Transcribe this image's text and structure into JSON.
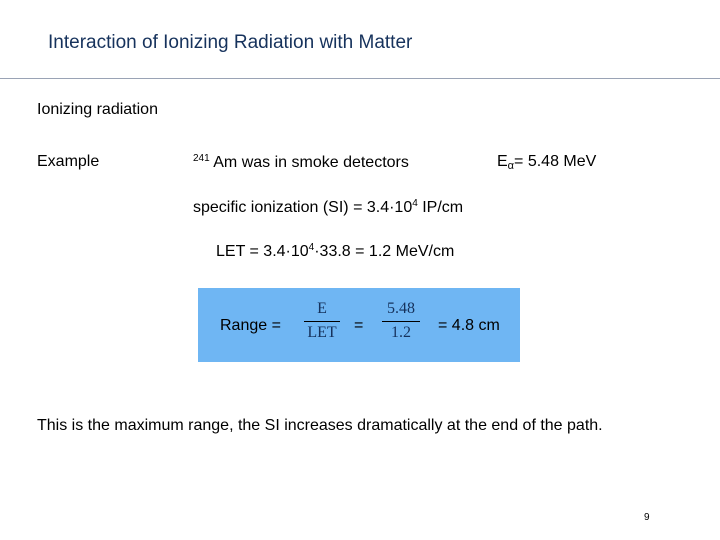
{
  "slide": {
    "title": "Interaction of Ionizing Radiation with Matter",
    "heading": "Ionizing radiation",
    "example_label": "Example",
    "isotope_mass": "241",
    "isotope_text": "Am was in smoke detectors",
    "energy_symbol": "E",
    "energy_subscript": "α",
    "energy_value": "= 5.48 MeV",
    "si_text": "specific ionization (SI) = 3.4·10",
    "si_exponent": "4",
    "si_unit": "IP/cm",
    "let_prefix": "LET = 3.4·10",
    "let_exponent": "4",
    "let_suffix": "·33.8 = 1.2 MeV/cm",
    "range": {
      "label": "Range =",
      "frac1_num": "E",
      "frac1_den": "LET",
      "equals": "=",
      "frac2_num": "5.48",
      "frac2_den": "1.2",
      "result": "= 4.8 cm"
    },
    "note": "This is the maximum range, the SI increases dramatically at the end of the path.",
    "page_number": "9"
  },
  "colors": {
    "title": "#16325c",
    "highlight_box": "#6fb6f3",
    "rule": "#9aa3b5"
  }
}
